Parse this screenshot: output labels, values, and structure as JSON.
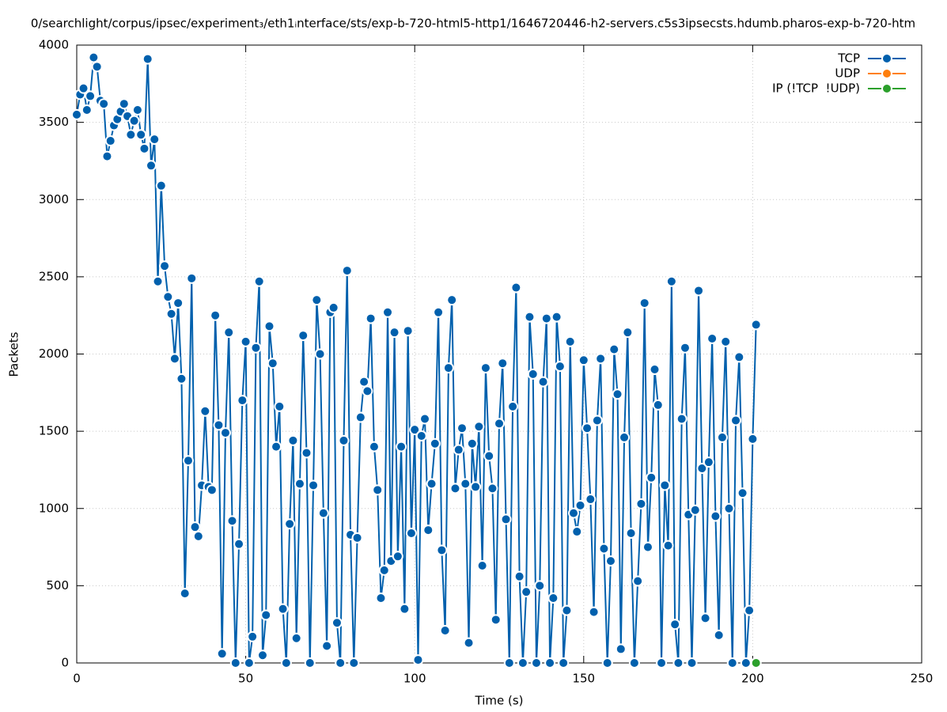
{
  "chart_data": {
    "type": "line",
    "title": "0/searchlight/corpus/ipsec/experiment₃/eth1ᵢnterface/sts/exp-b-720-html5-http1/1646720446-h2-servers.c5s3ipsecsts.hdumb.pharos-exp-b-720-htm",
    "x_label": "Time (s)",
    "y_label": "Packets",
    "xlim": [
      0,
      250
    ],
    "xticks": [
      0,
      50,
      100,
      150,
      200,
      250
    ],
    "ylim": [
      0,
      4000
    ],
    "yticks": [
      0,
      500,
      1000,
      1500,
      2000,
      2500,
      3000,
      3500,
      4000
    ],
    "grid": true,
    "legend": "top-right",
    "series": [
      {
        "name": "TCP",
        "color": "#0060ad",
        "x": [
          0,
          1,
          2,
          3,
          4,
          5,
          6,
          7,
          8,
          9,
          10,
          11,
          12,
          13,
          14,
          15,
          16,
          17,
          18,
          19,
          20,
          21,
          22,
          23,
          24,
          25,
          26,
          27,
          28,
          29,
          30,
          31,
          32,
          33,
          34,
          35,
          36,
          37,
          38,
          39,
          40,
          41,
          42,
          43,
          44,
          45,
          46,
          47,
          48,
          49,
          50,
          51,
          52,
          53,
          54,
          55,
          56,
          57,
          58,
          59,
          60,
          61,
          62,
          63,
          64,
          65,
          66,
          67,
          68,
          69,
          70,
          71,
          72,
          73,
          74,
          75,
          76,
          77,
          78,
          79,
          80,
          81,
          82,
          83,
          84,
          85,
          86,
          87,
          88,
          89,
          90,
          91,
          92,
          93,
          94,
          95,
          96,
          97,
          98,
          99,
          100,
          101,
          102,
          103,
          104,
          105,
          106,
          107,
          108,
          109,
          110,
          111,
          112,
          113,
          114,
          115,
          116,
          117,
          118,
          119,
          120,
          121,
          122,
          123,
          124,
          125,
          126,
          127,
          128,
          129,
          130,
          131,
          132,
          133,
          134,
          135,
          136,
          137,
          138,
          139,
          140,
          141,
          142,
          143,
          144,
          145,
          146,
          147,
          148,
          149,
          150,
          151,
          152,
          153,
          154,
          155,
          156,
          157,
          158,
          159,
          160,
          161,
          162,
          163,
          164,
          165,
          166,
          167,
          168,
          169,
          170,
          171,
          172,
          173,
          174,
          175,
          176,
          177,
          178,
          179,
          180,
          181,
          182,
          183,
          184,
          185,
          186,
          187,
          188,
          189,
          190,
          191,
          192,
          193,
          194,
          195,
          196,
          197,
          198,
          199,
          200,
          201
        ],
        "values": [
          3550,
          3680,
          3720,
          3580,
          3670,
          3920,
          3860,
          3640,
          3620,
          3280,
          3380,
          3480,
          3520,
          3570,
          3620,
          3540,
          3420,
          3510,
          3580,
          3420,
          3330,
          3910,
          3220,
          3390,
          2470,
          3090,
          2570,
          2370,
          2260,
          1970,
          2330,
          1840,
          450,
          1310,
          2490,
          880,
          820,
          1150,
          1630,
          1140,
          1120,
          2250,
          1540,
          60,
          1490,
          2140,
          920,
          0,
          770,
          1700,
          2080,
          0,
          170,
          2040,
          2470,
          50,
          310,
          2180,
          1940,
          1400,
          1660,
          350,
          0,
          900,
          1440,
          160,
          1160,
          2120,
          1360,
          0,
          1150,
          2350,
          2000,
          970,
          110,
          2270,
          2300,
          260,
          0,
          1440,
          2540,
          830,
          0,
          810,
          1590,
          1820,
          1760,
          2230,
          1400,
          1120,
          420,
          600,
          2270,
          660,
          2140,
          690,
          1400,
          350,
          2150,
          840,
          1510,
          20,
          1470,
          1580,
          860,
          1160,
          1420,
          2270,
          730,
          210,
          1910,
          2350,
          1130,
          1380,
          1520,
          1160,
          130,
          1420,
          1140,
          1530,
          630,
          1910,
          1340,
          1130,
          280,
          1550,
          1940,
          930,
          0,
          1660,
          2430,
          560,
          0,
          460,
          2240,
          1870,
          0,
          500,
          1820,
          2230,
          0,
          420,
          2240,
          1920,
          0,
          340,
          2080,
          970,
          850,
          1020,
          1960,
          1520,
          1060,
          330,
          1570,
          1970,
          740,
          0,
          660,
          2030,
          1740,
          90,
          1460,
          2140,
          840,
          0,
          530,
          1030,
          2330,
          750,
          1200,
          1900,
          1670,
          0,
          1150,
          760,
          2470,
          250,
          0,
          1580,
          2040,
          960,
          0,
          990,
          2410,
          1260,
          290,
          1300,
          2100,
          950,
          180,
          1460,
          2080,
          1000,
          0,
          1570,
          1980,
          1100,
          0,
          340,
          1450,
          2190
        ]
      },
      {
        "name": "UDP",
        "color": "#ff7f0e",
        "x": [],
        "values": []
      },
      {
        "name": "IP (!TCP  !UDP)",
        "color": "#2ca02c",
        "x": [
          201
        ],
        "values": [
          0
        ]
      }
    ]
  }
}
